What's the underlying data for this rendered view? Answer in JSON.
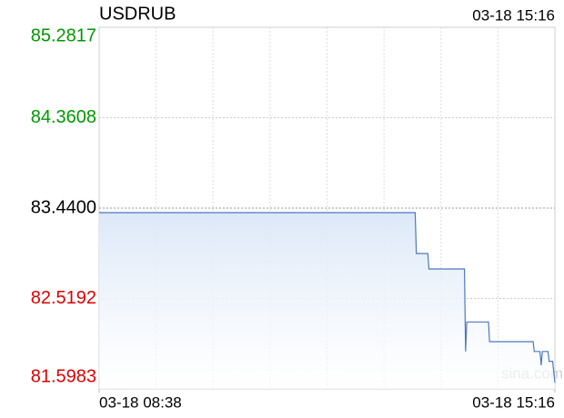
{
  "chart_data": {
    "type": "line",
    "title": "USDRUB",
    "timestamp": "03-18 15:16",
    "watermark": "sina.com",
    "x": [
      0,
      276,
      277,
      287,
      288,
      319,
      320,
      321,
      340,
      341,
      379,
      380,
      385,
      386,
      387,
      392,
      393,
      396,
      398
    ],
    "series": [
      {
        "name": "USDRUB",
        "color": "#4a78c0",
        "values": [
          83.394,
          83.394,
          82.977,
          82.977,
          82.82,
          82.82,
          81.98,
          82.28,
          82.28,
          82.08,
          82.08,
          81.98,
          81.98,
          81.84,
          81.98,
          81.98,
          81.88,
          81.88,
          81.66
        ]
      }
    ],
    "xlim": [
      0,
      398
    ],
    "xticks": [
      {
        "value": 0,
        "label": "03-18 08:38"
      },
      {
        "value": 398,
        "label": "03-18 15:16"
      }
    ],
    "ylim": [
      81.5983,
      85.2817
    ],
    "yticks": [
      {
        "value": 81.5983,
        "label": "81.5983"
      },
      {
        "value": 82.5192,
        "label": "82.5192"
      },
      {
        "value": 83.44,
        "label": "83.4400"
      },
      {
        "value": 84.3608,
        "label": "84.3608"
      },
      {
        "value": 85.2817,
        "label": "85.2817"
      }
    ],
    "up_color": "#009900",
    "down_color": "#dd0000",
    "flat_color": "#000000",
    "grid": true
  }
}
